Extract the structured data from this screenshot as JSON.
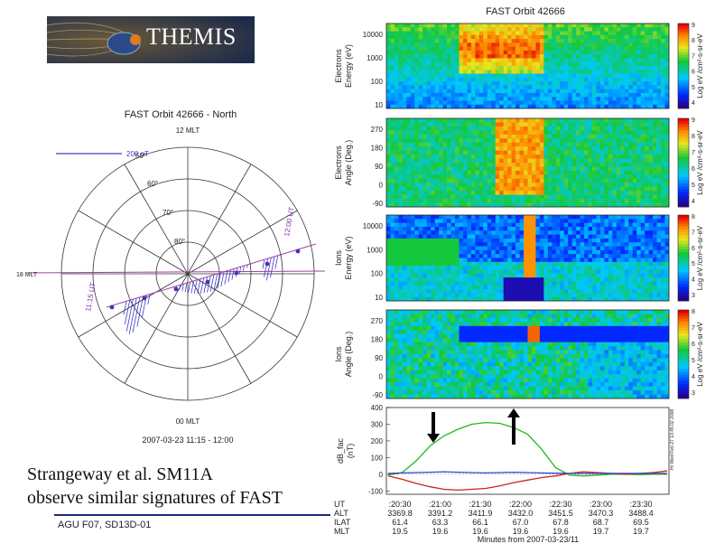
{
  "logo": {
    "text": "THEMIS"
  },
  "caption": {
    "line1": "Strangeway et al. SM11A",
    "line2": "observe similar signatures of FAST"
  },
  "footer": {
    "text": "AGU F07, SD13D-01"
  },
  "polar_plot": {
    "title": "FAST Orbit 42666 - North",
    "top_label": "12 MLT",
    "bottom_label": "00 MLT",
    "left_label": "18 MLT",
    "scale_label": "200 nT",
    "lat_labels": [
      "50°",
      "60°",
      "70°",
      "80°"
    ],
    "start_time": "11:15 UT",
    "end_time": "12:00 UT",
    "date_label": "2007-03-23  11:15 - 12:00"
  },
  "right_title": "FAST Orbit 42666",
  "chart_data": [
    {
      "type": "heatmap",
      "ylabel": "Electrons Energy (eV)",
      "yticks": [
        "10000",
        "1000",
        "100",
        "10"
      ],
      "colorbar_label": "Log eV /cm²-s-sr-eV",
      "colorbar_ticks": [
        "9",
        "8",
        "7",
        "6",
        "5",
        "4"
      ]
    },
    {
      "type": "heatmap",
      "ylabel": "Electrons Angle (Deg.)",
      "yticks": [
        "270",
        "180",
        "90",
        "0",
        "-90"
      ],
      "colorbar_label": "Log eV /cm²-s-sr-eV",
      "colorbar_ticks": [
        "9",
        "8",
        "7",
        "6",
        "5",
        "4"
      ]
    },
    {
      "type": "heatmap",
      "ylabel": "Ions Energy (eV)",
      "yticks": [
        "10000",
        "1000",
        "100",
        "10"
      ],
      "colorbar_label": "Log eV /cm²-s-sr-eV",
      "colorbar_ticks": [
        "8",
        "7",
        "6",
        "5",
        "4",
        "3"
      ]
    },
    {
      "type": "heatmap",
      "ylabel": "Ions Angle (Deg.)",
      "yticks": [
        "270",
        "180",
        "90",
        "0",
        "-90"
      ],
      "colorbar_label": "Log eV /cm²-s-sr-eV",
      "colorbar_ticks": [
        "8",
        "7",
        "6",
        "5",
        "4",
        "3"
      ]
    },
    {
      "type": "line",
      "ylabel": "dB_fac (nT)",
      "yticks": [
        "400",
        "300",
        "200",
        "100",
        "0",
        "-100"
      ],
      "ylim": [
        -120,
        400
      ],
      "x": [
        0,
        1,
        2,
        3,
        4,
        5,
        6,
        7,
        8,
        9,
        10,
        11,
        12,
        13,
        14,
        15,
        16,
        17,
        18,
        19,
        20
      ],
      "series": [
        {
          "name": "green",
          "color": "#22b822",
          "values": [
            -5,
            10,
            80,
            170,
            230,
            270,
            300,
            310,
            305,
            280,
            240,
            150,
            40,
            -5,
            -10,
            -5,
            0,
            0,
            -3,
            0,
            0
          ]
        },
        {
          "name": "red",
          "color": "#cc2222",
          "values": [
            -10,
            -30,
            -55,
            -75,
            -90,
            -95,
            -90,
            -85,
            -70,
            -50,
            -35,
            -20,
            -10,
            5,
            15,
            10,
            5,
            0,
            5,
            10,
            20
          ]
        },
        {
          "name": "blue",
          "color": "#3344cc",
          "values": [
            5,
            8,
            10,
            12,
            15,
            12,
            10,
            8,
            10,
            12,
            10,
            8,
            6,
            5,
            5,
            5,
            5,
            5,
            5,
            5,
            5
          ]
        }
      ],
      "ephemeris_row_labels": [
        "UT",
        "ALT",
        "ILAT",
        "MLT"
      ],
      "ephemeris": [
        {
          "UT": ":20:30",
          "ALT": "3369.8",
          "ILAT": "61.4",
          "MLT": "19.5"
        },
        {
          "UT": ":21:00",
          "ALT": "3391.2",
          "ILAT": "63.3",
          "MLT": "19.6"
        },
        {
          "UT": ":21:30",
          "ALT": "3411.9",
          "ILAT": "66.1",
          "MLT": "19.6"
        },
        {
          "UT": ":22:00",
          "ALT": "3432.0",
          "ILAT": "67.0",
          "MLT": "19.6"
        },
        {
          "UT": ":22:30",
          "ALT": "3451.5",
          "ILAT": "67.8",
          "MLT": "19.6"
        },
        {
          "UT": ":23:00",
          "ALT": "3470.3",
          "ILAT": "68.7",
          "MLT": "19.7"
        },
        {
          "UT": ":23:30",
          "ALT": "3488.4",
          "ILAT": "69.5",
          "MLT": "19.7"
        }
      ],
      "xlabel": "Minutes from 2007-03-23/11",
      "side_note": "Hr Wed Feb 27 13:45:02 2008"
    }
  ]
}
